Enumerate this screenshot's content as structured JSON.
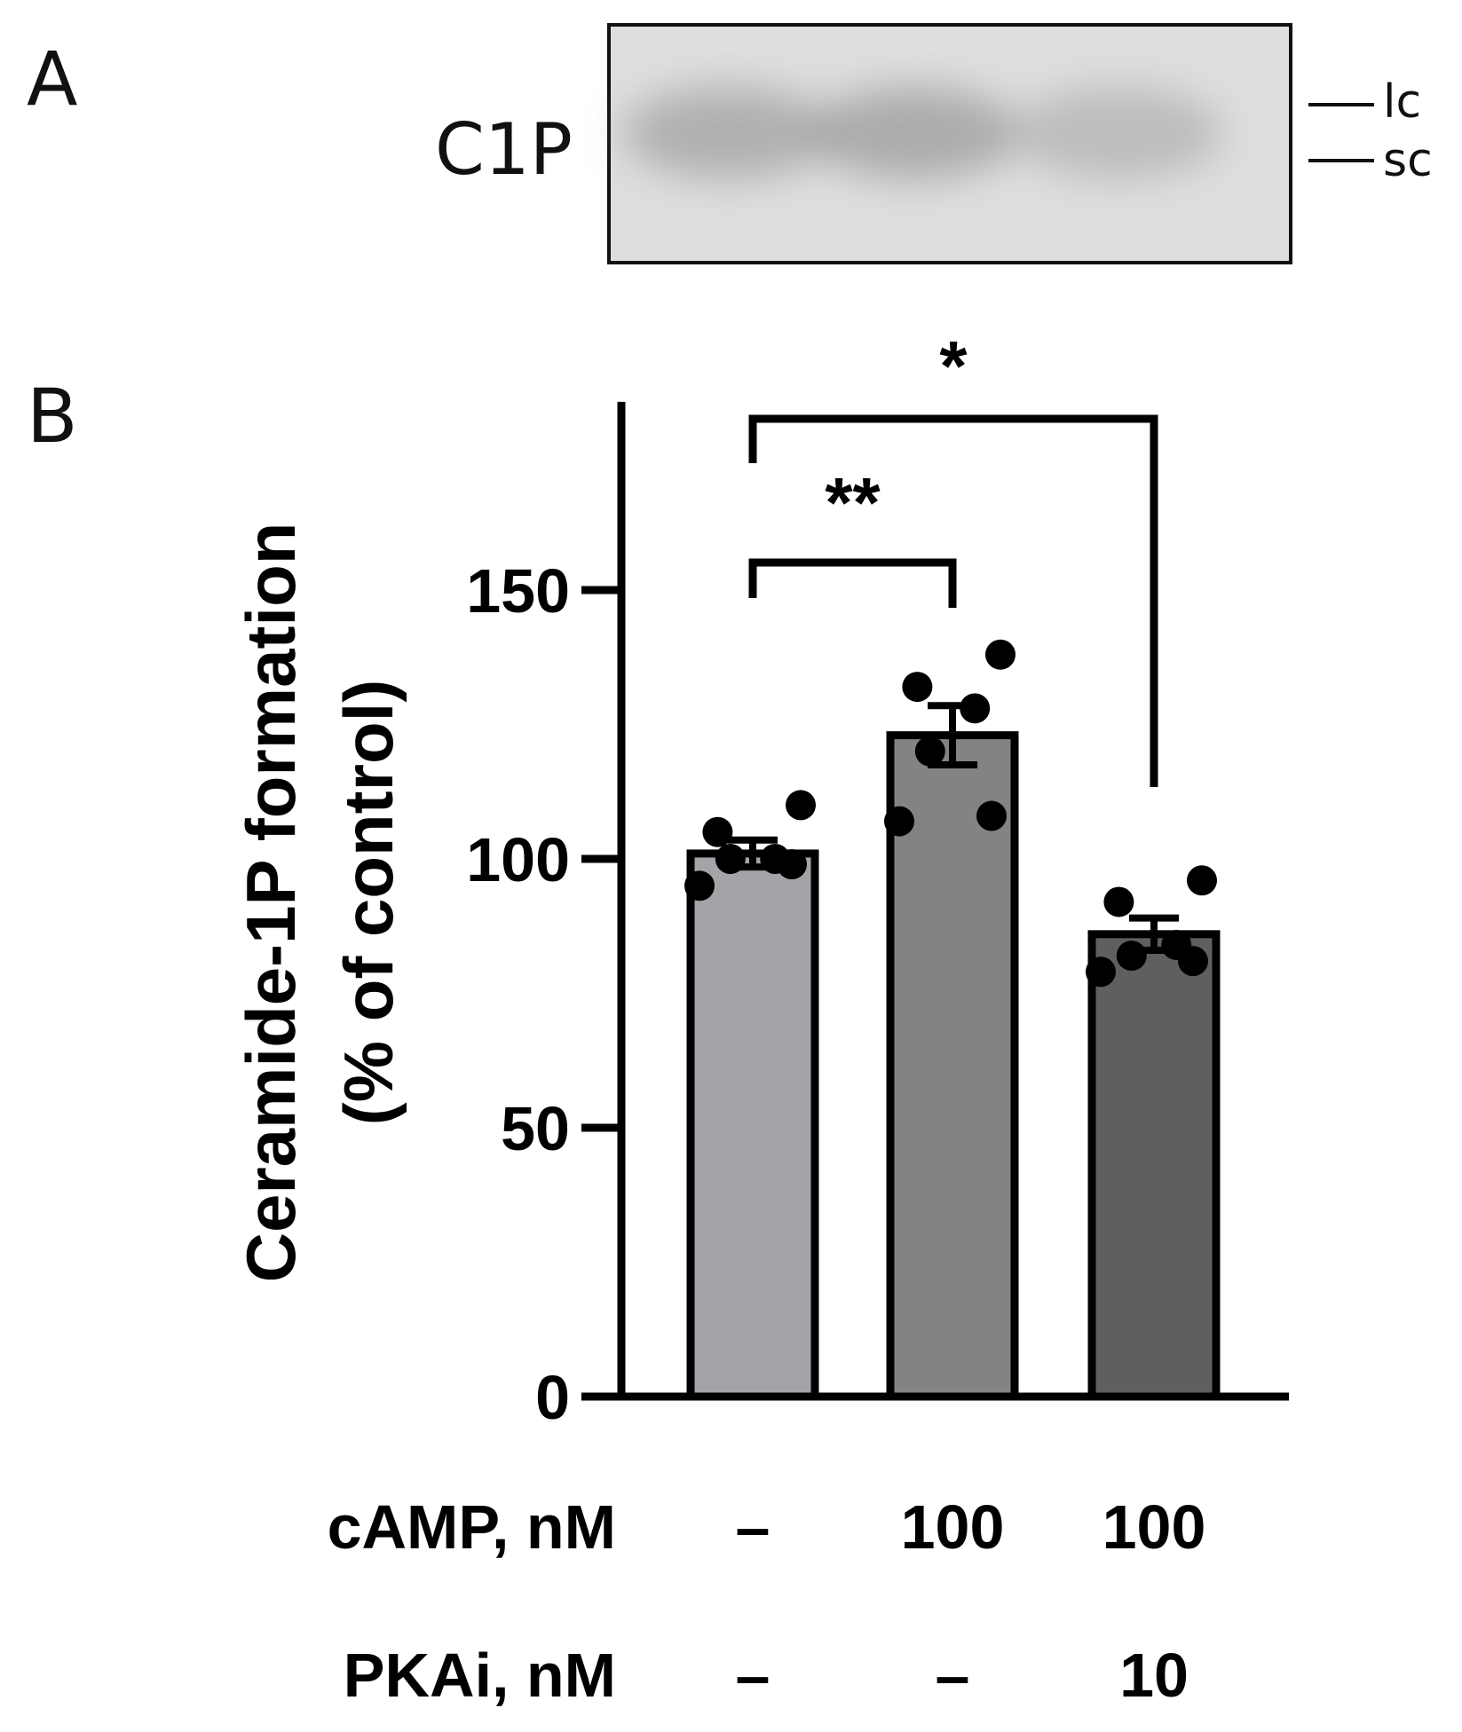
{
  "panel_a": {
    "letter": "A",
    "blot_label": "C1P",
    "markers": [
      "lc",
      "sc"
    ],
    "lane_count": 3,
    "lane_intensity": [
      0.55,
      0.6,
      0.4
    ]
  },
  "panel_b": {
    "letter": "B"
  },
  "colors": {
    "axis": "#000000",
    "bars": [
      "#a4a4a8",
      "#838385",
      "#5f5f61"
    ],
    "points": "#000000",
    "blot_background": "#dedede",
    "blot_band": "#8a8a8a"
  },
  "chart_data": {
    "type": "bar",
    "ylabel_line1": "Ceramide-1P formation",
    "ylabel_line2": "(% of control)",
    "ylim": [
      0,
      185
    ],
    "yticks": [
      0,
      50,
      100,
      150
    ],
    "categories": [
      "–|–",
      "100|–",
      "100|10"
    ],
    "values": [
      101,
      123,
      86
    ],
    "errors": [
      2.5,
      5.5,
      3
    ],
    "points": [
      [
        95,
        99,
        100,
        100,
        105,
        110
      ],
      [
        107,
        108,
        120,
        128,
        132,
        138
      ],
      [
        79,
        81,
        82,
        84,
        92,
        96
      ]
    ],
    "condition_rows": [
      {
        "label": "cAMP, nM",
        "values": [
          "–",
          "100",
          "100"
        ]
      },
      {
        "label": "PKAi, nM",
        "values": [
          "–",
          "–",
          "10"
        ]
      }
    ],
    "significance": [
      {
        "from": 0,
        "to": 2,
        "label": "*"
      },
      {
        "from": 0,
        "to": 1,
        "label": "**"
      }
    ]
  }
}
